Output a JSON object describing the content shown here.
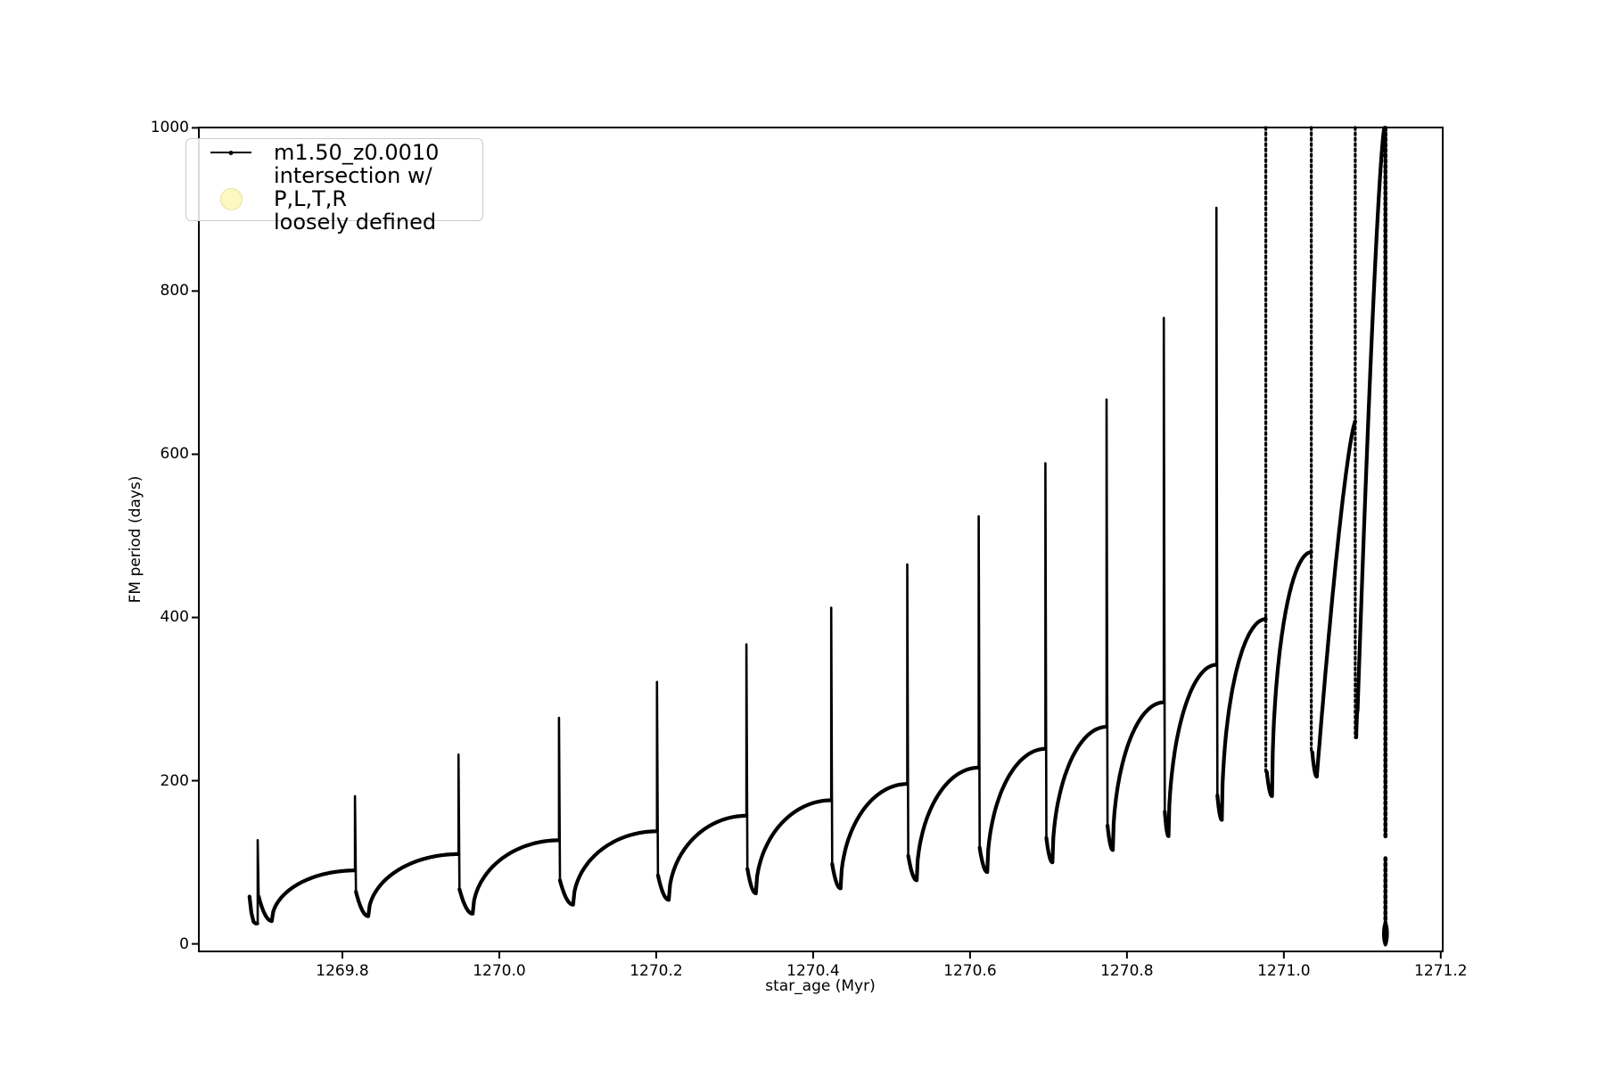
{
  "figure": {
    "background": "#ffffff",
    "line_color": "#000000"
  },
  "axes": {
    "xlabel": "star_age (Myr)",
    "ylabel": "FM period (days)",
    "x_ticks": [
      "1269.8",
      "1270.0",
      "1270.2",
      "1270.4",
      "1270.6",
      "1270.8",
      "1271.0",
      "1271.2"
    ],
    "x_tick_values": [
      1269.8,
      1270.0,
      1270.2,
      1270.4,
      1270.6,
      1270.8,
      1271.0,
      1271.2
    ],
    "y_ticks": [
      "0",
      "200",
      "400",
      "600",
      "800",
      "1000"
    ],
    "y_tick_values": [
      0,
      200,
      400,
      600,
      800,
      1000
    ],
    "xlim": [
      1269.617,
      1271.2025
    ],
    "ylim": [
      -9.2,
      1000.4
    ],
    "grid": false
  },
  "legend": {
    "position": "upper-left",
    "entries": [
      {
        "label": "m1.50_z0.0010",
        "marker": "line-with-dot",
        "color": "#000000"
      },
      {
        "label": "intersection w/ P,L,T,R\nloosely defined",
        "marker": "filled-circle",
        "color": "#FBF8C2",
        "edge_color": "#E8E2A0"
      }
    ]
  },
  "chart_data": {
    "type": "line",
    "series_name": "m1.50_z0.0010",
    "xlabel": "star_age (Myr)",
    "ylabel": "FM period (days)",
    "description": "Sawtooth evolution of fundamental-mode pulsation period: each cycle dips, rises concavely to a plateau, then spikes sharply upward; spike amplitude grows with age until spikes clip at 1000 days; ends in a dense vertical collapse to 0 near 1271.13 Myr.",
    "intro_points": [
      [
        1269.6815,
        58
      ],
      [
        1269.684,
        38
      ],
      [
        1269.6868,
        27
      ],
      [
        1269.6895,
        25
      ]
    ],
    "cycles": [
      {
        "spike_t": 1269.692,
        "peak": 127,
        "dip_t": 1269.71,
        "dip": 28,
        "rise_to": 90
      },
      {
        "spike_t": 1269.816,
        "peak": 181,
        "dip_t": 1269.833,
        "dip": 34,
        "rise_to": 110
      },
      {
        "spike_t": 1269.948,
        "peak": 232,
        "dip_t": 1269.966,
        "dip": 37,
        "rise_to": 127
      },
      {
        "spike_t": 1270.076,
        "peak": 277,
        "dip_t": 1270.094,
        "dip": 48,
        "rise_to": 138
      },
      {
        "spike_t": 1270.201,
        "peak": 321,
        "dip_t": 1270.216,
        "dip": 54,
        "rise_to": 157
      },
      {
        "spike_t": 1270.315,
        "peak": 367,
        "dip_t": 1270.327,
        "dip": 62,
        "rise_to": 176
      },
      {
        "spike_t": 1270.423,
        "peak": 412,
        "dip_t": 1270.435,
        "dip": 68,
        "rise_to": 196
      },
      {
        "spike_t": 1270.52,
        "peak": 465,
        "dip_t": 1270.532,
        "dip": 78,
        "rise_to": 216
      },
      {
        "spike_t": 1270.611,
        "peak": 524,
        "dip_t": 1270.622,
        "dip": 88,
        "rise_to": 239
      },
      {
        "spike_t": 1270.696,
        "peak": 589,
        "dip_t": 1270.705,
        "dip": 100,
        "rise_to": 266
      },
      {
        "spike_t": 1270.774,
        "peak": 667,
        "dip_t": 1270.782,
        "dip": 115,
        "rise_to": 296
      },
      {
        "spike_t": 1270.847,
        "peak": 767,
        "dip_t": 1270.853,
        "dip": 132,
        "rise_to": 342
      },
      {
        "spike_t": 1270.914,
        "peak": 902,
        "dip_t": 1270.921,
        "dip": 152,
        "rise_to": 398
      },
      {
        "spike_t": 1270.977,
        "peak": 1012,
        "clipped": true,
        "dip_t": 1270.985,
        "dip": 181,
        "rise_to": 480
      },
      {
        "spike_t": 1271.035,
        "peak": 1012,
        "clipped": true,
        "dip_t": 1271.042,
        "dip": 205,
        "rise_to": 640,
        "rise_shape": "ramp"
      },
      {
        "spike_t": 1271.091,
        "peak": 1012,
        "clipped": true,
        "drop": 253,
        "dip_t": 1271.094,
        "dip": 286,
        "rise_to": 1000,
        "rise_shape": "ramp",
        "rise_end_t": 1271.128
      }
    ],
    "final_column": {
      "t": 1271.1295,
      "segments": [
        [
          130,
          1000
        ],
        [
          0,
          105
        ]
      ],
      "bottom_blob": [
        0,
        25
      ]
    }
  }
}
